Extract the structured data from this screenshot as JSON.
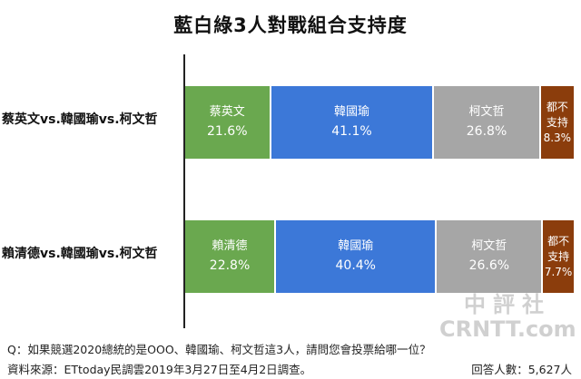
{
  "chart_data": {
    "type": "bar",
    "stacked": true,
    "orientation": "horizontal",
    "title": "藍白綠3人對戰組合支持度",
    "categories": [
      "蔡英文vs.韓國瑜vs.柯文哲",
      "賴清德vs.韓國瑜vs.柯文哲"
    ],
    "unit": "%",
    "xlim": [
      0,
      100
    ],
    "grid": false,
    "legend": "none",
    "series": [
      {
        "labels": [
          "蔡英文",
          "賴清德"
        ],
        "values": [
          21.6,
          22.8
        ],
        "value_labels": [
          "21.6%",
          "22.8%"
        ],
        "color": "#6aa84f"
      },
      {
        "labels": [
          "韓國瑜",
          "韓國瑜"
        ],
        "values": [
          41.1,
          40.4
        ],
        "value_labels": [
          "41.1%",
          "40.4%"
        ],
        "color": "#3c78d8"
      },
      {
        "labels": [
          "柯文哲",
          "柯文哲"
        ],
        "values": [
          26.8,
          26.6
        ],
        "value_labels": [
          "26.8%",
          "26.6%"
        ],
        "color": "#a6a6a6"
      },
      {
        "labels": [
          "都不支持",
          "都不支持"
        ],
        "values": [
          8.3,
          7.7
        ],
        "value_labels": [
          "8.3%",
          "7.7%"
        ],
        "color": "#8b3d0c"
      }
    ]
  },
  "footer": {
    "question": "Q：如果競選2020總統的是OOO、韓國瑜、柯文哲這3人，請問您會投票給哪一位？",
    "source": "資料來源：ETtoday民調雲2019年3月27日至4月2日調查。",
    "sample": "回答人數：5,627人"
  },
  "watermark": {
    "top": "中評社",
    "bottom": "CRNTT.com"
  }
}
